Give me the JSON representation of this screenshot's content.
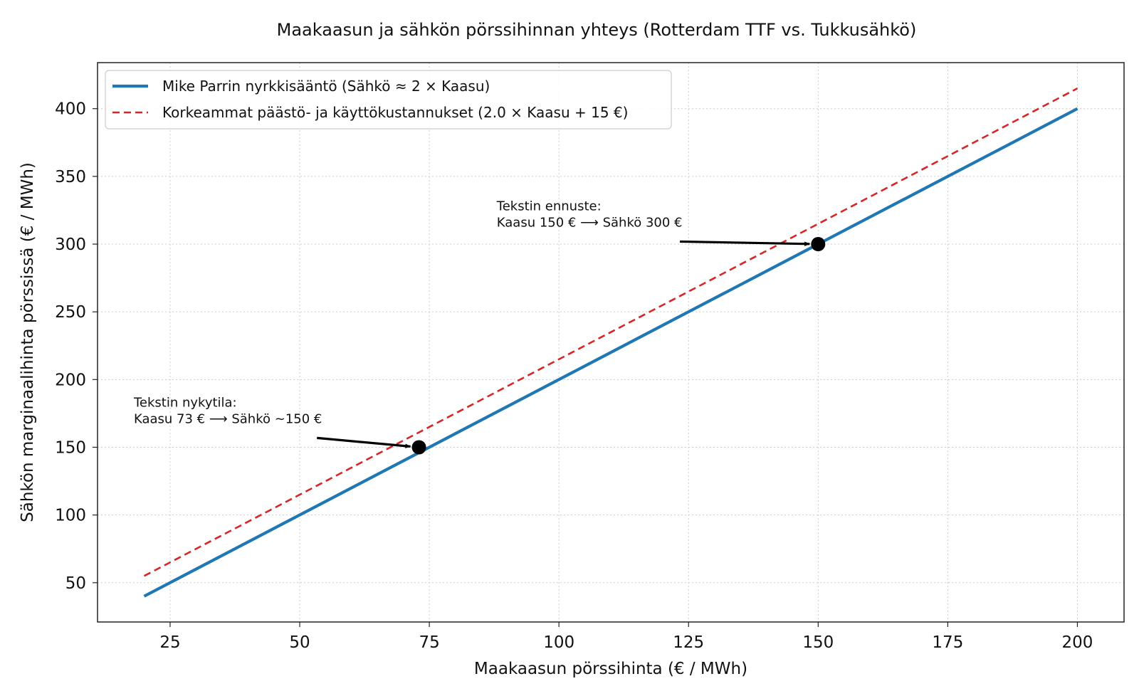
{
  "chart_data": {
    "type": "line",
    "title": "Maakaasun ja sähkön pörssihinnan yhteys (Rotterdam TTF vs. Tukkusähkö)",
    "xlabel": "Maakaasun pörssihinta (€ / MWh)",
    "ylabel": "Sähkön marginaalihinta pörssissä (€ / MWh)",
    "xlim": [
      11,
      209
    ],
    "ylim": [
      21,
      434
    ],
    "xticks": [
      25,
      50,
      75,
      100,
      125,
      150,
      175,
      200
    ],
    "xtick_labels": [
      "25",
      "50",
      "75",
      "100",
      "125",
      "150",
      "175",
      "200"
    ],
    "yticks": [
      50,
      100,
      150,
      200,
      250,
      300,
      350,
      400
    ],
    "ytick_labels": [
      "50",
      "100",
      "150",
      "200",
      "250",
      "300",
      "350",
      "400"
    ],
    "grid": true,
    "legend_position": "top-left",
    "series": [
      {
        "name": "Mike Parrin nyrkkisääntö (Sähkö ≈ 2 × Kaasu)",
        "x": [
          20,
          200
        ],
        "y": [
          40,
          400
        ],
        "color": "#1f77b4",
        "style": "solid"
      },
      {
        "name": "Korkeammat päästö- ja käyttökustannukset (2.0 × Kaasu + 15 €)",
        "x": [
          20,
          200
        ],
        "y": [
          55,
          415
        ],
        "color": "#d62728",
        "style": "dashed"
      }
    ],
    "points": [
      {
        "x": 73,
        "y": 150
      },
      {
        "x": 150,
        "y": 300
      }
    ],
    "annotations": [
      {
        "lines": [
          "Tekstin nykytila:",
          "Kaasu 73 € ⟶ Sähkö ~150 €"
        ],
        "target": {
          "x": 73,
          "y": 150
        },
        "text_at": {
          "x": 18,
          "y": 180
        }
      },
      {
        "lines": [
          "Tekstin ennuste:",
          "Kaasu 150 € ⟶ Sähkö 300 €"
        ],
        "target": {
          "x": 150,
          "y": 300
        },
        "text_at": {
          "x": 88,
          "y": 325
        }
      }
    ]
  }
}
